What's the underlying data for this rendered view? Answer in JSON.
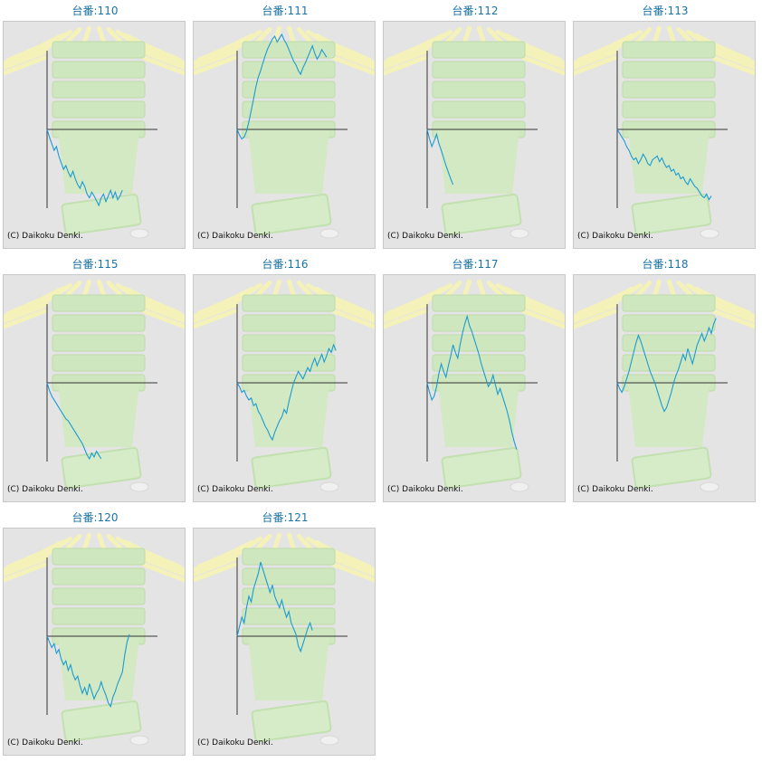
{
  "chart_data": [
    {
      "type": "line",
      "title": "台番:110",
      "footer": "(C) Daikoku Denki.",
      "values": [
        0,
        -8,
        -15,
        -22,
        -18,
        -28,
        -35,
        -42,
        -38,
        -45,
        -50,
        -44,
        -52,
        -58,
        -62,
        -55,
        -60,
        -68,
        -72,
        -66,
        -70,
        -75,
        -80,
        -72,
        -68,
        -76,
        -70,
        -64,
        -72,
        -66,
        -74,
        -70,
        -64
      ]
    },
    {
      "type": "line",
      "title": "台番:111",
      "footer": "(C) Daikoku Denki.",
      "values": [
        0,
        -6,
        -10,
        -8,
        -2,
        8,
        20,
        32,
        45,
        55,
        62,
        70,
        78,
        85,
        90,
        95,
        98,
        92,
        96,
        100,
        94,
        90,
        84,
        78,
        72,
        68,
        62,
        58,
        65,
        70,
        76,
        82,
        88,
        80,
        74,
        78,
        84,
        80,
        76
      ]
    },
    {
      "type": "line",
      "title": "台番:112",
      "footer": "(C) Daikoku Denki.",
      "values": [
        0,
        -10,
        -18,
        -12,
        -5,
        -15,
        -22,
        -30,
        -38,
        -45,
        -52,
        -58
      ]
    },
    {
      "type": "line",
      "title": "台番:113",
      "footer": "(C) Daikoku Denki.",
      "values": [
        0,
        -4,
        -8,
        -12,
        -18,
        -22,
        -28,
        -32,
        -30,
        -36,
        -32,
        -26,
        -30,
        -36,
        -38,
        -32,
        -30,
        -28,
        -34,
        -30,
        -36,
        -40,
        -38,
        -44,
        -42,
        -48,
        -46,
        -52,
        -50,
        -55,
        -58,
        -52,
        -56,
        -60,
        -62,
        -66,
        -70,
        -72,
        -68,
        -74,
        -70
      ]
    },
    {
      "type": "line",
      "title": "台番:115",
      "footer": "(C) Daikoku Denki.",
      "values": [
        0,
        -8,
        -14,
        -18,
        -22,
        -26,
        -30,
        -34,
        -38,
        -40,
        -44,
        -48,
        -52,
        -56,
        -60,
        -64,
        -70,
        -76,
        -80,
        -74,
        -78,
        -72,
        -76,
        -80
      ]
    },
    {
      "type": "line",
      "title": "台番:116",
      "footer": "(C) Daikoku Denki.",
      "values": [
        0,
        -4,
        -10,
        -8,
        -14,
        -18,
        -16,
        -24,
        -22,
        -30,
        -34,
        -40,
        -46,
        -50,
        -56,
        -60,
        -52,
        -46,
        -40,
        -36,
        -28,
        -32,
        -20,
        -10,
        0,
        6,
        12,
        8,
        4,
        10,
        16,
        12,
        20,
        26,
        18,
        24,
        30,
        22,
        28,
        36,
        32,
        40,
        34
      ]
    },
    {
      "type": "line",
      "title": "台番:117",
      "footer": "(C) Daikoku Denki.",
      "values": [
        0,
        -10,
        -18,
        -14,
        -4,
        10,
        20,
        12,
        6,
        18,
        28,
        40,
        32,
        26,
        40,
        52,
        62,
        70,
        60,
        54,
        46,
        38,
        30,
        20,
        12,
        4,
        -4,
        0,
        8,
        -2,
        -12,
        -6,
        -14,
        -22,
        -30,
        -40,
        -52,
        -62,
        -70
      ]
    },
    {
      "type": "line",
      "title": "台番:118",
      "footer": "(C) Daikoku Denki.",
      "values": [
        0,
        -6,
        -10,
        -4,
        4,
        12,
        22,
        32,
        42,
        50,
        44,
        36,
        28,
        20,
        12,
        6,
        0,
        -8,
        -16,
        -24,
        -30,
        -26,
        -18,
        -10,
        0,
        8,
        14,
        22,
        30,
        24,
        36,
        28,
        20,
        30,
        40,
        46,
        52,
        44,
        50,
        58,
        52,
        62,
        68
      ]
    },
    {
      "type": "line",
      "title": "台番:120",
      "footer": "(C) Daikoku Denki.",
      "values": [
        0,
        -6,
        -12,
        -8,
        -18,
        -14,
        -24,
        -30,
        -26,
        -36,
        -30,
        -40,
        -46,
        -42,
        -52,
        -60,
        -54,
        -62,
        -50,
        -58,
        -66,
        -60,
        -56,
        -48,
        -56,
        -62,
        -70,
        -74,
        -64,
        -58,
        -50,
        -44,
        -38,
        -20,
        -6,
        2
      ]
    },
    {
      "type": "line",
      "title": "台番:121",
      "footer": "(C) Daikoku Denki.",
      "values": [
        0,
        10,
        20,
        14,
        30,
        42,
        36,
        50,
        58,
        66,
        78,
        70,
        62,
        54,
        46,
        54,
        42,
        36,
        30,
        38,
        28,
        20,
        26,
        14,
        8,
        2,
        -10,
        -16,
        -8,
        0,
        8,
        14,
        6
      ]
    }
  ]
}
